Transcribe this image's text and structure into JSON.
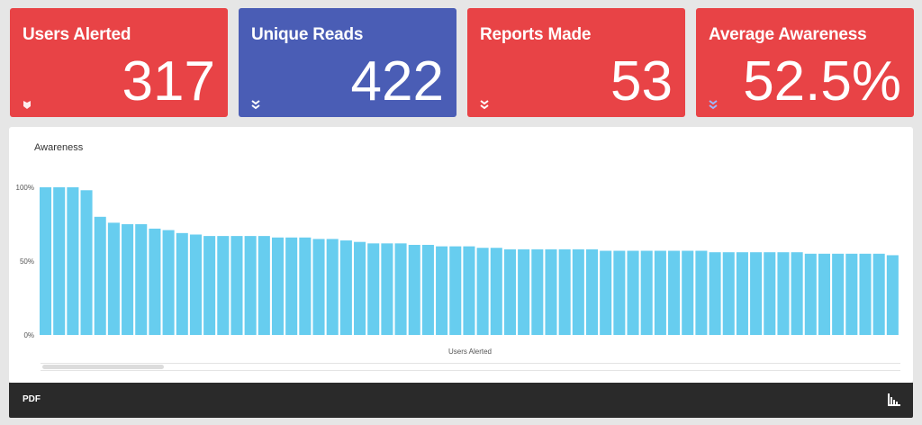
{
  "cards": [
    {
      "title": "Users Alerted",
      "value": "317",
      "color": "#e84346",
      "icon": "shield-icon"
    },
    {
      "title": "Unique Reads",
      "value": "422",
      "color": "#4a5db5",
      "icon": "double-chevron-down-icon"
    },
    {
      "title": "Reports Made",
      "value": "53",
      "color": "#e84346",
      "icon": "double-chevron-down-icon"
    },
    {
      "title": "Average Awareness",
      "value": "52.5%",
      "color": "#e84346",
      "icon": "double-chevron-down-icon"
    }
  ],
  "chart_data": {
    "type": "bar",
    "title": "Awareness",
    "xlabel": "Users Alerted",
    "ylabel": "",
    "ylim": [
      0,
      100
    ],
    "yticks": [
      "100%",
      "50%",
      "0%"
    ],
    "bar_color": "#67cdef",
    "values": [
      100,
      100,
      100,
      98,
      80,
      76,
      75,
      75,
      72,
      71,
      69,
      68,
      67,
      67,
      67,
      67,
      67,
      66,
      66,
      66,
      65,
      65,
      64,
      63,
      62,
      62,
      62,
      61,
      61,
      60,
      60,
      60,
      59,
      59,
      58,
      58,
      58,
      58,
      58,
      58,
      58,
      57,
      57,
      57,
      57,
      57,
      57,
      57,
      57,
      56,
      56,
      56,
      56,
      56,
      56,
      56,
      55,
      55,
      55,
      55,
      55,
      55,
      54
    ]
  },
  "footer": {
    "pdf_label": "PDF",
    "icon": "bar-chart-icon"
  }
}
